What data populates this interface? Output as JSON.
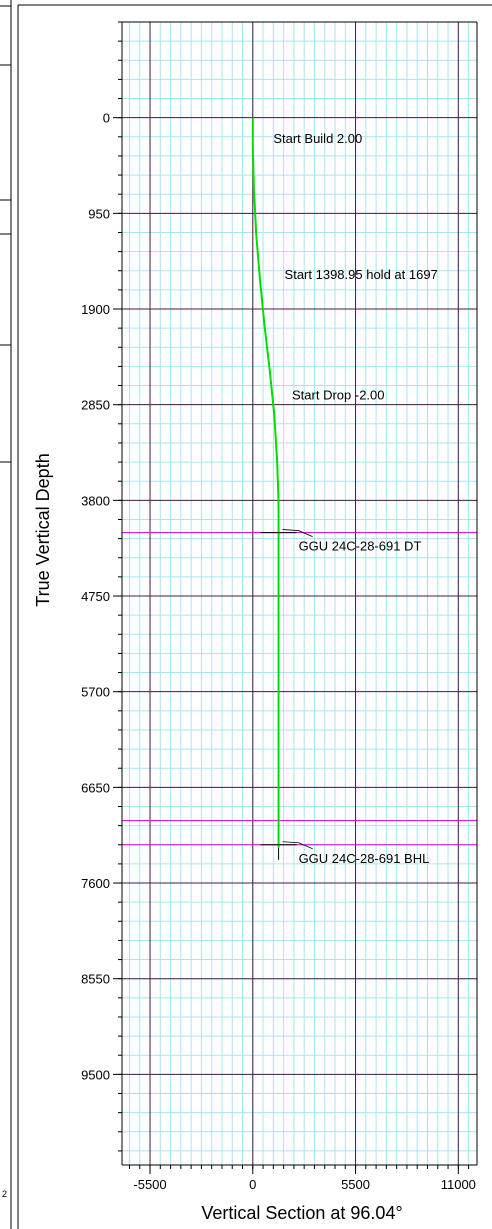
{
  "chart_data": {
    "type": "line",
    "xlabel": "Vertical Section at 96.04°",
    "ylabel": "True Vertical Depth",
    "xlim": [
      -7000,
      12000
    ],
    "ylim": [
      -950,
      10400
    ],
    "y_inverted": true,
    "x_ticks": [
      -5500,
      0,
      5500,
      11000
    ],
    "x_tick_labels": [
      "-5500",
      "0",
      "5500",
      "11000"
    ],
    "y_ticks": [
      0,
      950,
      1900,
      2850,
      3800,
      4750,
      5700,
      6650,
      7600,
      8550,
      9500
    ],
    "y_tick_labels": [
      "0",
      "950",
      "1900",
      "2850",
      "3800",
      "4750",
      "5700",
      "6650",
      "7600",
      "8550",
      "9500"
    ],
    "grid": true,
    "series": [
      {
        "color": "#00dd00",
        "x": [
          0,
          0,
          60,
          180,
          380,
          620,
          900,
          1150,
          1300,
          1370,
          1380,
          1380,
          1380
        ],
        "y": [
          0,
          300,
          700,
          1150,
          1600,
          2050,
          2500,
          2950,
          3400,
          3750,
          3900,
          6000,
          7250
        ]
      }
    ],
    "target_lines": [
      {
        "y": 4120,
        "color": "#cc00cc",
        "label": "GGU 24C-28-691 DT"
      },
      {
        "y": 6980,
        "color": "#cc00cc"
      },
      {
        "y": 7220,
        "color": "#cc00cc",
        "label": "GGU 24C-28-691 BHL"
      }
    ],
    "annotations": [
      {
        "text": "Start Build 2.00",
        "x": 1100,
        "y": 200
      },
      {
        "text": "Start 1398.95 hold at 1697",
        "x": 1700,
        "y": 1550
      },
      {
        "text": "Start Drop -2.00",
        "x": 2100,
        "y": 2750
      }
    ],
    "edge_fragment": "2"
  }
}
